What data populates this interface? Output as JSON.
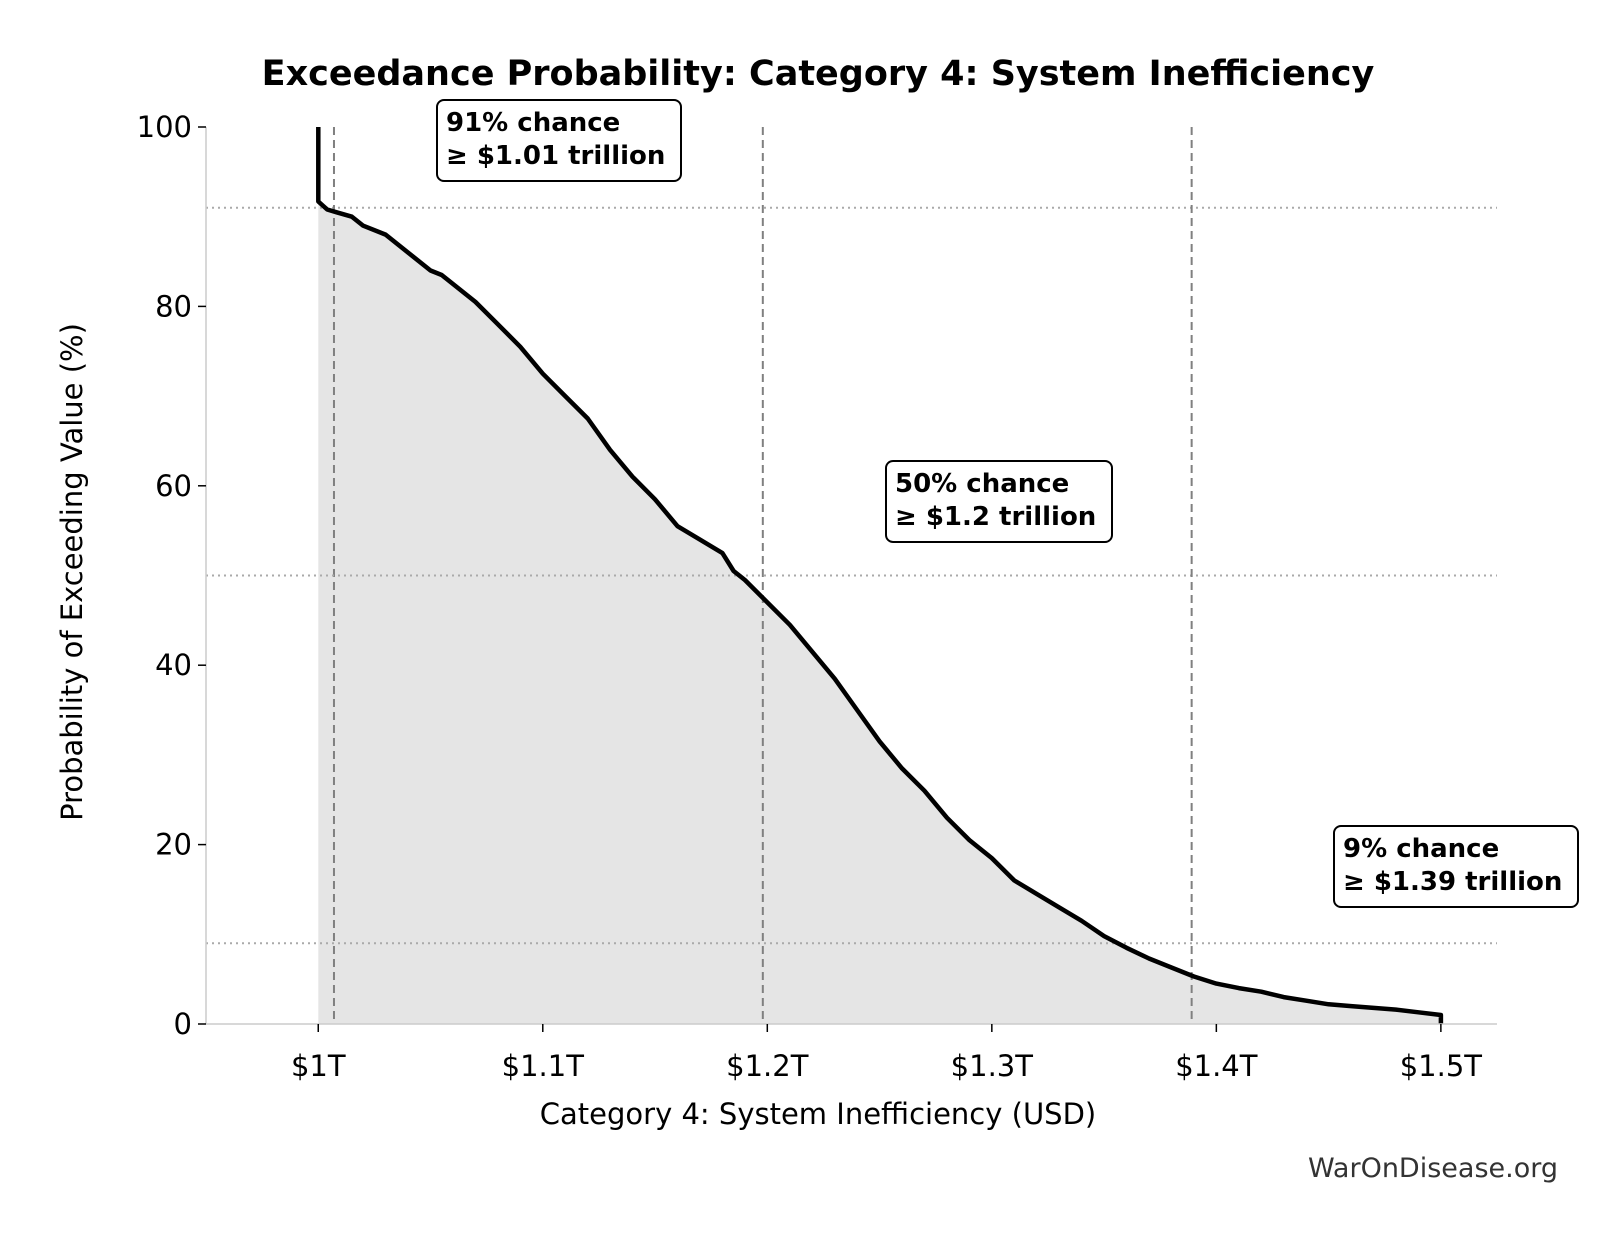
{
  "chart_data": {
    "type": "area",
    "title": "Exceedance Probability: Category 4: System Inefficiency",
    "xlabel": "Category 4: System Inefficiency (USD)",
    "ylabel": "Probability of Exceeding Value (%)",
    "x_unit": "trillion USD",
    "xlim": [
      0.95,
      1.525
    ],
    "ylim": [
      0,
      100
    ],
    "x_ticks": [
      {
        "value": 1.0,
        "label": "$1T"
      },
      {
        "value": 1.1,
        "label": "$1.1T"
      },
      {
        "value": 1.2,
        "label": "$1.2T"
      },
      {
        "value": 1.3,
        "label": "$1.3T"
      },
      {
        "value": 1.4,
        "label": "$1.4T"
      },
      {
        "value": 1.5,
        "label": "$1.5T"
      }
    ],
    "y_ticks": [
      {
        "value": 0,
        "label": "0"
      },
      {
        "value": 20,
        "label": "20"
      },
      {
        "value": 40,
        "label": "40"
      },
      {
        "value": 60,
        "label": "60"
      },
      {
        "value": 80,
        "label": "80"
      },
      {
        "value": 100,
        "label": "100"
      }
    ],
    "curve": {
      "x": [
        1.0,
        1.0,
        1.004,
        1.008,
        1.015,
        1.02,
        1.03,
        1.04,
        1.05,
        1.055,
        1.06,
        1.07,
        1.08,
        1.09,
        1.1,
        1.11,
        1.12,
        1.13,
        1.14,
        1.15,
        1.16,
        1.17,
        1.18,
        1.185,
        1.19,
        1.2,
        1.21,
        1.22,
        1.23,
        1.24,
        1.25,
        1.26,
        1.27,
        1.28,
        1.29,
        1.3,
        1.31,
        1.32,
        1.33,
        1.34,
        1.35,
        1.36,
        1.37,
        1.38,
        1.39,
        1.4,
        1.41,
        1.42,
        1.43,
        1.44,
        1.45,
        1.46,
        1.47,
        1.48,
        1.49,
        1.5,
        1.5
      ],
      "y": [
        100,
        91.7,
        90.8,
        90.5,
        90.0,
        89.0,
        88.0,
        86.0,
        84.0,
        83.5,
        82.5,
        80.5,
        78.0,
        75.5,
        72.5,
        70.0,
        67.5,
        64.0,
        61.0,
        58.5,
        55.5,
        54.0,
        52.5,
        50.5,
        49.5,
        47.0,
        44.5,
        41.5,
        38.5,
        35.0,
        31.5,
        28.5,
        26.0,
        23.0,
        20.5,
        18.5,
        16.0,
        14.5,
        13.0,
        11.5,
        9.8,
        8.5,
        7.3,
        6.3,
        5.3,
        4.5,
        4.0,
        3.6,
        3.0,
        2.6,
        2.2,
        2.0,
        1.8,
        1.6,
        1.3,
        1.0,
        0
      ]
    },
    "reference_lines": [
      {
        "probability": 91,
        "value": 1.007
      },
      {
        "probability": 50,
        "value": 1.198
      },
      {
        "probability": 9,
        "value": 1.389
      }
    ],
    "annotations": [
      {
        "line1": "91% chance",
        "line2": "≥ $1.01 trillion"
      },
      {
        "line1": "50% chance",
        "line2": "≥ $1.2 trillion"
      },
      {
        "line1": "9% chance",
        "line2": "≥ $1.39 trillion"
      }
    ],
    "grid": false,
    "fill_color": "#e5e5e5",
    "line_color": "#000000",
    "reference_line_color": "#999999"
  },
  "footer": {
    "source": "WarOnDisease.org"
  }
}
